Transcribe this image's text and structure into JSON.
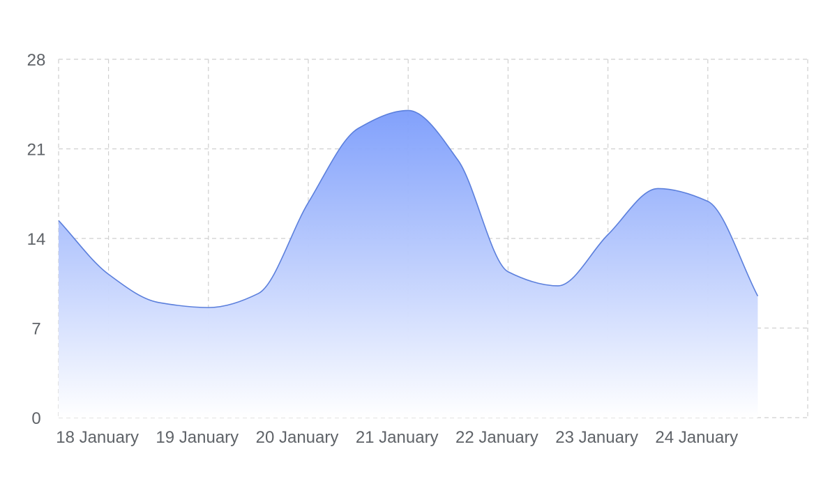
{
  "chart_data": {
    "type": "area",
    "title": "",
    "xlabel": "",
    "ylabel": "",
    "x": [
      "2024-01-18 00:00",
      "2024-01-18 12:00",
      "2024-01-19 00:00",
      "2024-01-19 12:00",
      "2024-01-20 00:00",
      "2024-01-20 12:00",
      "2024-01-21 00:00",
      "2024-01-21 12:00",
      "2024-01-22 00:00",
      "2024-01-22 12:00",
      "2024-01-23 00:00",
      "2024-01-23 12:00",
      "2024-01-24 00:00",
      "2024-01-24 12:00",
      "2024-01-25 00:00"
    ],
    "series": [
      {
        "values": [
          15.4,
          11.2,
          9.0,
          8.6,
          9.7,
          16.8,
          22.6,
          24.0,
          20.1,
          11.4,
          10.3,
          14.3,
          17.9,
          16.9,
          9.5
        ]
      }
    ],
    "x_tick_labels": [
      "18 January",
      "19 January",
      "20 January",
      "21 January",
      "22 January",
      "23 January",
      "24 January"
    ],
    "y_ticks": [
      0,
      7,
      14,
      21,
      28
    ],
    "ylim": [
      0,
      28
    ],
    "xlim": [
      "2024-01-18 00:00",
      "2024-01-25 12:00"
    ],
    "grid": true,
    "legend": "none",
    "colors": {
      "line": "#5b7fdc",
      "fill_top": "#7b9cfb",
      "fill_bottom": "#ffffff",
      "grid": "#cfcfcf",
      "tick_text": "#5f6368"
    }
  }
}
